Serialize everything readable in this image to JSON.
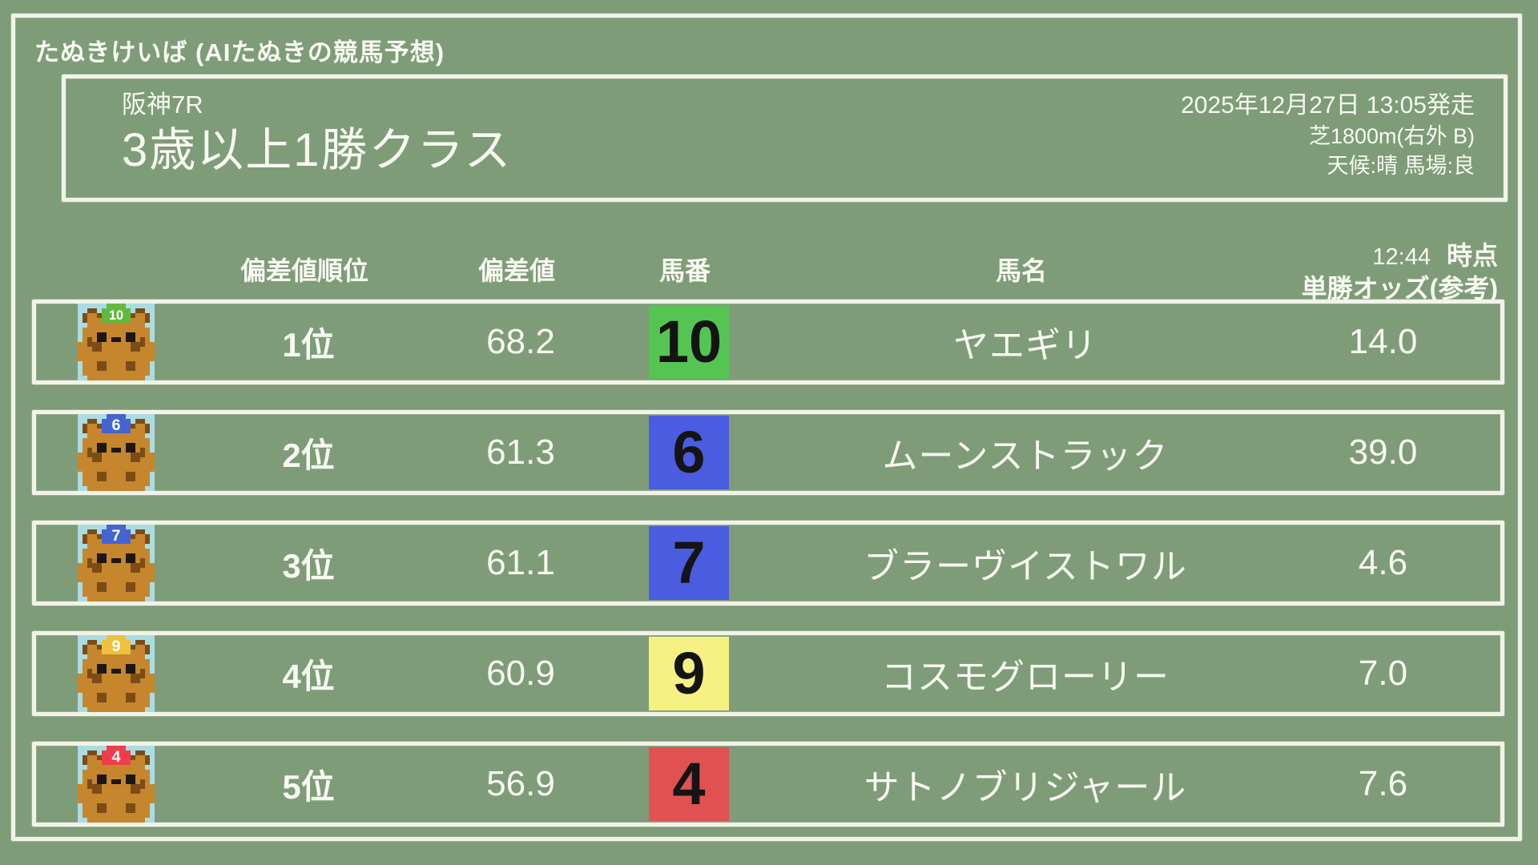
{
  "app": {
    "title": "たぬきけいば (AIたぬきの競馬予想)"
  },
  "race": {
    "track_race": "阪神7R",
    "name": "3歳以上1勝クラス",
    "start": "2025年12月27日 13:05発走",
    "course": "芝1800m(右外 B)",
    "conditions": "天候:晴 馬場:良"
  },
  "table": {
    "headers": {
      "rank": "偏差値順位",
      "score": "偏差値",
      "number": "馬番",
      "name": "馬名",
      "odds_time": "12:44",
      "odds_time_suffix": "時点",
      "odds_label": "単勝オッズ(参考)"
    },
    "rows": [
      {
        "rank": "1位",
        "score": "68.2",
        "number": "10",
        "number_color": "#56c452",
        "cap_color": "#62b93f",
        "name": "ヤエギリ",
        "odds": "14.0"
      },
      {
        "rank": "2位",
        "score": "61.3",
        "number": "6",
        "number_color": "#4a5ce0",
        "cap_color": "#4464d2",
        "name": "ムーンストラック",
        "odds": "39.0"
      },
      {
        "rank": "3位",
        "score": "61.1",
        "number": "7",
        "number_color": "#4a5ce0",
        "cap_color": "#4464d2",
        "name": "ブラーヴイストワル",
        "odds": "4.6"
      },
      {
        "rank": "4位",
        "score": "60.9",
        "number": "9",
        "number_color": "#f6f183",
        "cap_color": "#eec23e",
        "name": "コスモグローリー",
        "odds": "7.0"
      },
      {
        "rank": "5位",
        "score": "56.9",
        "number": "4",
        "number_color": "#e05252",
        "cap_color": "#f23c4c",
        "name": "サトノブリジャール",
        "odds": "7.6"
      }
    ]
  },
  "colors": {
    "background": "#7e9c78",
    "chalk_border": "#f2f3e8",
    "text": "#f8f9f2",
    "number_text": "#141414"
  },
  "icons": {
    "avatar": "tanuki-avatar",
    "avatar_background": "#aadce2",
    "tanuki_body": "#c6862e",
    "tanuki_dark": "#7c4c16",
    "cap_number_text": "#ffffff"
  }
}
